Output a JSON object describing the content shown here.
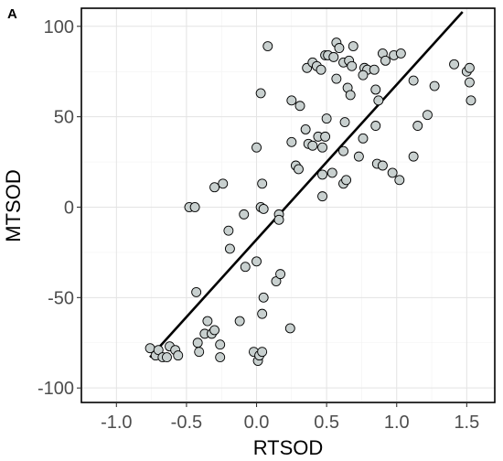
{
  "chart_data": {
    "type": "scatter",
    "panel_label": "A",
    "xlabel": "RTSOD",
    "ylabel": "MTSOD",
    "xlim": [
      -1.25,
      1.7
    ],
    "ylim": [
      -108,
      110
    ],
    "x_ticks": [
      -1.0,
      -0.5,
      0.0,
      0.5,
      1.0,
      1.5
    ],
    "x_tick_labels": [
      "-1.0",
      "-0.5",
      "0.0",
      "0.5",
      "1.0",
      "1.5"
    ],
    "y_ticks": [
      -100,
      -50,
      0,
      50,
      100
    ],
    "y_tick_labels": [
      "-100",
      "-50",
      "0",
      "50",
      "100"
    ],
    "grid": true,
    "point_color": "#c8d0cf",
    "point_edge_color": "#000000",
    "fit_line": {
      "x1": -0.76,
      "y1": -83,
      "x2": 1.47,
      "y2": 108
    },
    "points": [
      [
        -0.76,
        -78
      ],
      [
        -0.72,
        -82
      ],
      [
        -0.7,
        -79
      ],
      [
        -0.67,
        -83
      ],
      [
        -0.64,
        -83
      ],
      [
        -0.62,
        -77
      ],
      [
        -0.58,
        -79
      ],
      [
        -0.56,
        -82
      ],
      [
        -0.42,
        -75
      ],
      [
        -0.41,
        -80
      ],
      [
        -0.37,
        -70
      ],
      [
        -0.35,
        -63
      ],
      [
        -0.32,
        -70
      ],
      [
        -0.3,
        -68
      ],
      [
        -0.26,
        -83
      ],
      [
        -0.26,
        -76
      ],
      [
        -0.12,
        -63
      ],
      [
        -0.02,
        -80
      ],
      [
        0.01,
        -85
      ],
      [
        0.02,
        -82
      ],
      [
        0.04,
        -80
      ],
      [
        0.04,
        -59
      ],
      [
        0.05,
        -50
      ],
      [
        0.14,
        -41
      ],
      [
        0.17,
        -37
      ],
      [
        0.24,
        -67
      ],
      [
        -0.43,
        -47
      ],
      [
        -0.08,
        -33
      ],
      [
        0.0,
        -30
      ],
      [
        -0.48,
        0
      ],
      [
        -0.44,
        0
      ],
      [
        -0.24,
        13
      ],
      [
        -0.3,
        11
      ],
      [
        -0.2,
        -13
      ],
      [
        -0.19,
        -23
      ],
      [
        -0.09,
        -4
      ],
      [
        0.03,
        0
      ],
      [
        0.05,
        -1
      ],
      [
        0.16,
        -4
      ],
      [
        0.16,
        -7
      ],
      [
        0.04,
        13
      ],
      [
        0.0,
        33
      ],
      [
        0.03,
        63
      ],
      [
        0.08,
        89
      ],
      [
        0.25,
        36
      ],
      [
        0.28,
        23
      ],
      [
        0.3,
        21
      ],
      [
        0.35,
        43
      ],
      [
        0.37,
        35
      ],
      [
        0.4,
        34
      ],
      [
        0.44,
        39
      ],
      [
        0.47,
        33
      ],
      [
        0.49,
        39
      ],
      [
        0.5,
        49
      ],
      [
        0.47,
        18
      ],
      [
        0.47,
        6
      ],
      [
        0.54,
        19
      ],
      [
        0.62,
        13
      ],
      [
        0.64,
        15
      ],
      [
        0.62,
        31
      ],
      [
        0.63,
        47
      ],
      [
        0.65,
        66
      ],
      [
        0.67,
        62
      ],
      [
        0.73,
        28
      ],
      [
        0.76,
        38
      ],
      [
        0.85,
        45
      ],
      [
        0.86,
        24
      ],
      [
        0.9,
        23
      ],
      [
        0.87,
        59
      ],
      [
        0.85,
        65
      ],
      [
        0.97,
        19
      ],
      [
        1.02,
        15
      ],
      [
        1.12,
        28
      ],
      [
        1.15,
        45
      ],
      [
        1.22,
        51
      ],
      [
        1.12,
        70
      ],
      [
        1.27,
        67
      ],
      [
        1.41,
        79
      ],
      [
        1.5,
        75
      ],
      [
        1.52,
        77
      ],
      [
        1.52,
        69
      ],
      [
        1.53,
        59
      ],
      [
        0.25,
        59
      ],
      [
        0.31,
        56
      ],
      [
        0.36,
        77
      ],
      [
        0.4,
        80
      ],
      [
        0.43,
        78
      ],
      [
        0.46,
        76
      ],
      [
        0.49,
        84
      ],
      [
        0.51,
        84
      ],
      [
        0.55,
        83
      ],
      [
        0.57,
        71
      ],
      [
        0.57,
        91
      ],
      [
        0.59,
        88
      ],
      [
        0.62,
        80
      ],
      [
        0.66,
        81
      ],
      [
        0.69,
        89
      ],
      [
        0.68,
        78
      ],
      [
        0.77,
        77
      ],
      [
        0.79,
        76
      ],
      [
        0.76,
        73
      ],
      [
        0.84,
        76
      ],
      [
        0.9,
        85
      ],
      [
        0.92,
        81
      ],
      [
        0.98,
        84
      ],
      [
        1.03,
        85
      ]
    ]
  }
}
